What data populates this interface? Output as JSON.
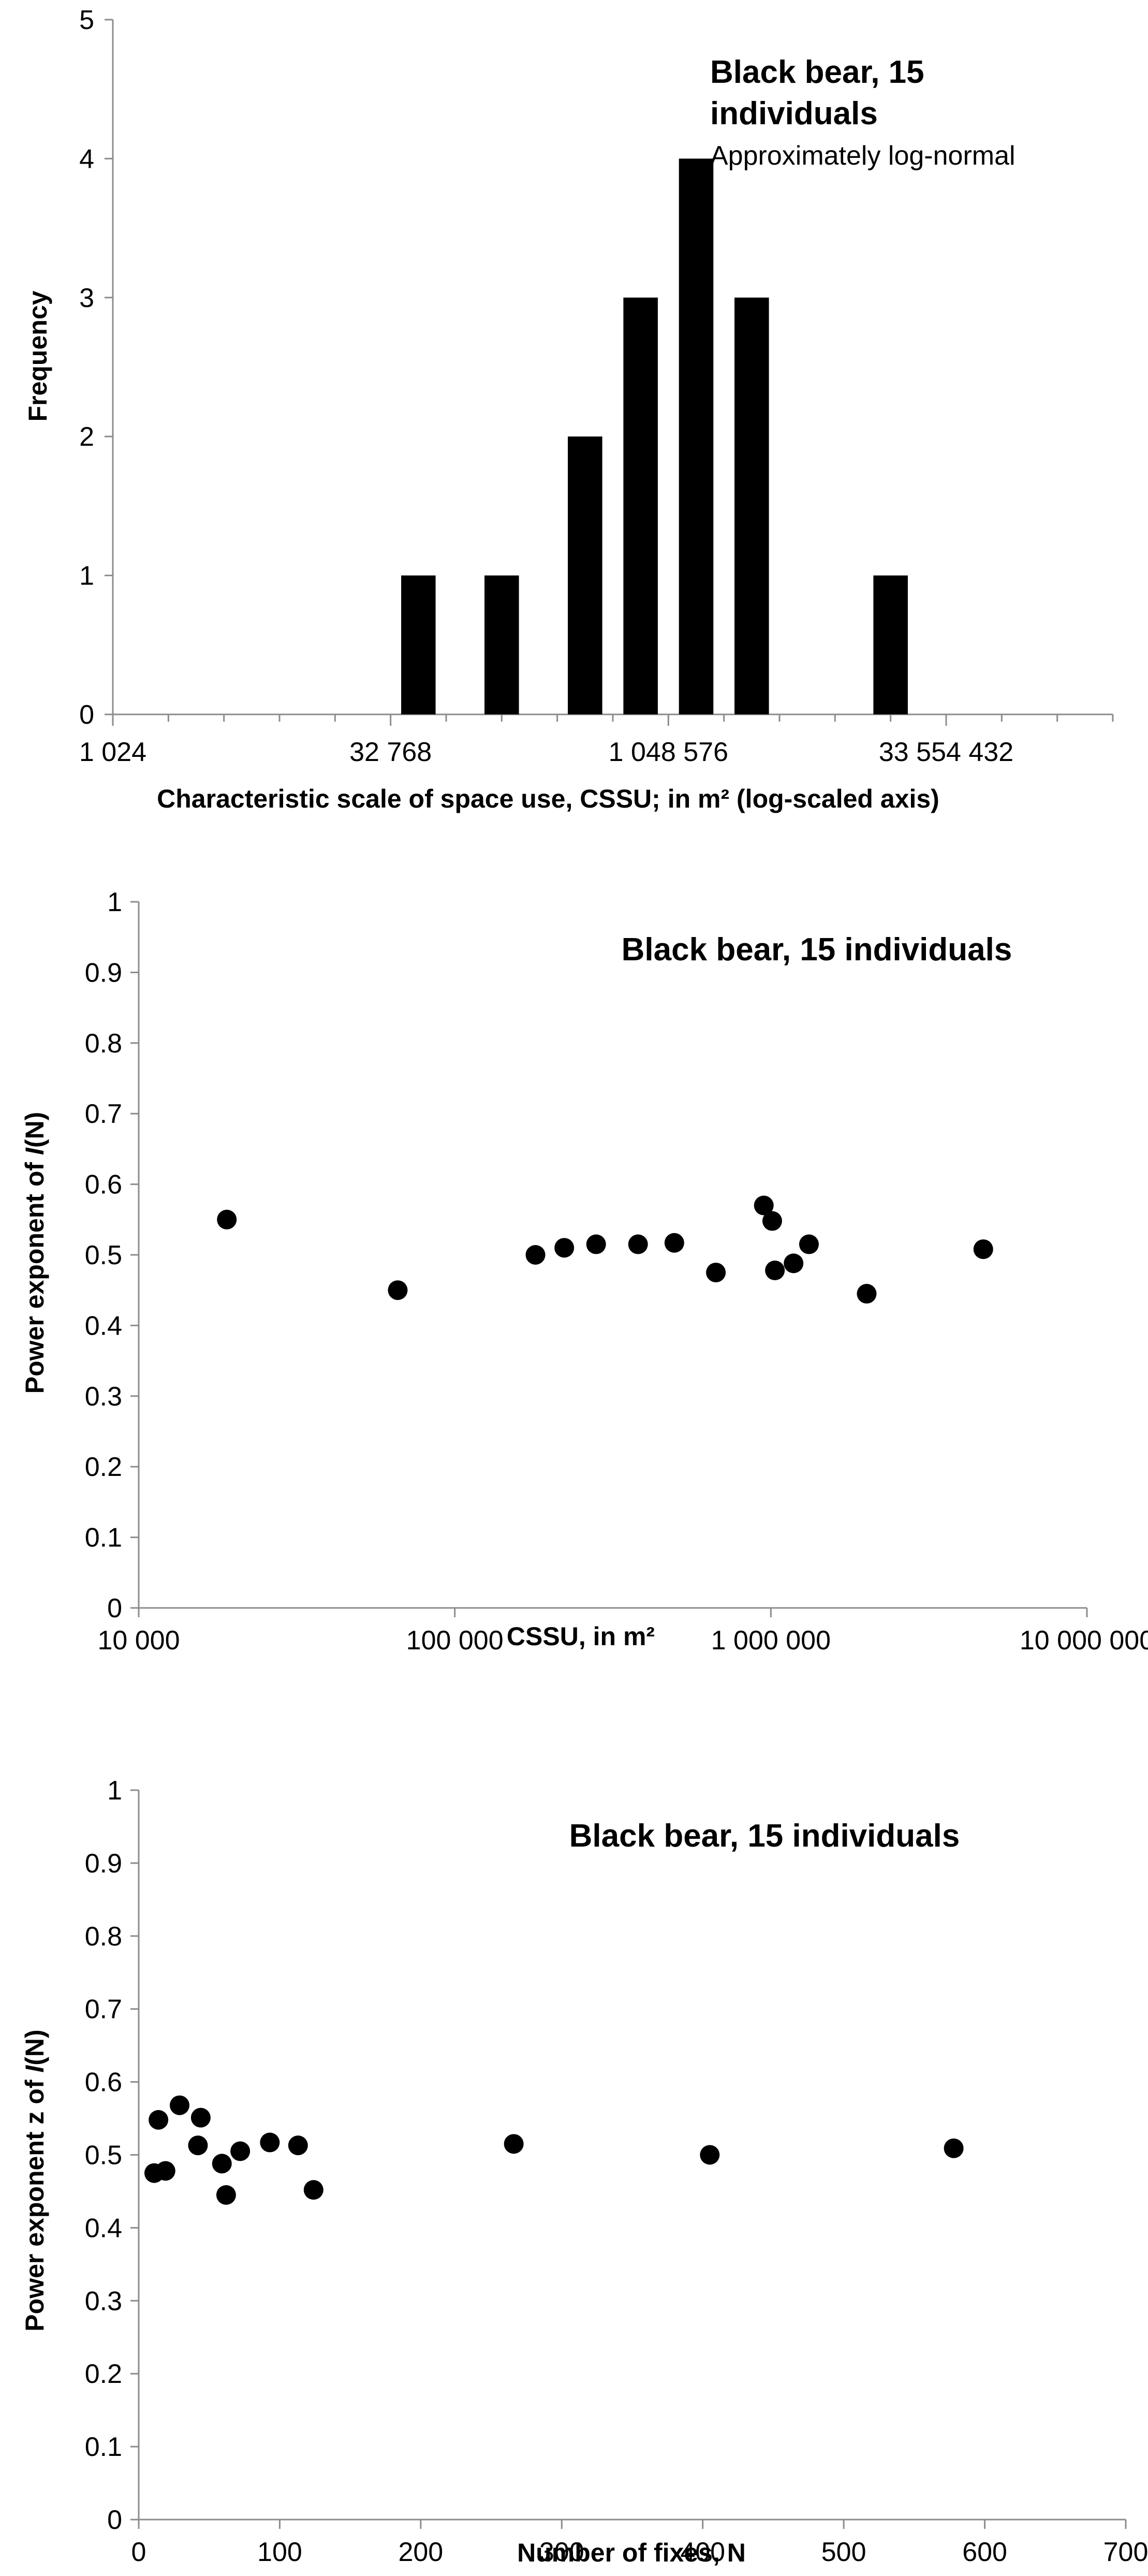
{
  "chart_data": [
    {
      "type": "bar",
      "title_lines": [
        "Black bear, 15",
        "individuals"
      ],
      "subtitle": "Approximately log-normal",
      "xlabel": "Characteristic scale of space use, CSSU; in m² (log-scaled axis)",
      "ylabel": "Frequency",
      "x_tick_labels": [
        "1 024",
        "32 768",
        "1 048 576",
        "33 554 432"
      ],
      "x_tick_values": [
        1024,
        32768,
        1048576,
        33554432
      ],
      "x_log_base": 2,
      "xlim": [
        1024,
        268435456
      ],
      "ylim": [
        0,
        5
      ],
      "y_ticks": [
        0,
        1,
        2,
        3,
        4,
        5
      ],
      "bars": [
        {
          "x": 46341,
          "value": 1
        },
        {
          "x": 131072,
          "value": 1
        },
        {
          "x": 370728,
          "value": 2
        },
        {
          "x": 741455,
          "value": 3
        },
        {
          "x": 1482910,
          "value": 4
        },
        {
          "x": 2965821,
          "value": 3
        },
        {
          "x": 16777216,
          "value": 1
        }
      ],
      "grid": false
    },
    {
      "type": "scatter",
      "title": "Black bear, 15 individuals",
      "xlabel": "CSSU, in m²",
      "ylabel_prefix": "Power exponent of ",
      "ylabel_italic": "I",
      "ylabel_suffix": "(N)",
      "x_scale": "log",
      "xlim": [
        10000,
        10000000
      ],
      "x_tick_labels": [
        "10 000",
        "100 000",
        "1 000 000",
        "10 000 000"
      ],
      "x_tick_values": [
        10000,
        100000,
        1000000,
        10000000
      ],
      "ylim": [
        0,
        1
      ],
      "y_tick_labels": [
        "0",
        "0.1",
        "0.2",
        "0.3",
        "0.4",
        "0.5",
        "0.6",
        "0.7",
        "0.8",
        "0.9",
        "1"
      ],
      "points": [
        {
          "x": 19000,
          "y": 0.55
        },
        {
          "x": 66000,
          "y": 0.45
        },
        {
          "x": 180000,
          "y": 0.5
        },
        {
          "x": 222000,
          "y": 0.51
        },
        {
          "x": 280000,
          "y": 0.515
        },
        {
          "x": 380000,
          "y": 0.515
        },
        {
          "x": 495000,
          "y": 0.517
        },
        {
          "x": 670000,
          "y": 0.475
        },
        {
          "x": 950000,
          "y": 0.57
        },
        {
          "x": 1010000,
          "y": 0.548
        },
        {
          "x": 1030000,
          "y": 0.478
        },
        {
          "x": 1180000,
          "y": 0.488
        },
        {
          "x": 1320000,
          "y": 0.515
        },
        {
          "x": 2010000,
          "y": 0.445
        },
        {
          "x": 4700000,
          "y": 0.508
        }
      ],
      "grid": false
    },
    {
      "type": "scatter",
      "title": "Black bear, 15 individuals",
      "xlabel": "Number of fixes, N",
      "ylabel_prefix": "Power exponent z of ",
      "ylabel_italic": "I",
      "ylabel_suffix": "(N)",
      "xlim": [
        0,
        700
      ],
      "x_tick_labels": [
        "0",
        "100",
        "200",
        "300",
        "400",
        "500",
        "600",
        "700"
      ],
      "ylim": [
        0,
        1
      ],
      "y_tick_labels": [
        "0",
        "0.1",
        "0.2",
        "0.3",
        "0.4",
        "0.5",
        "0.6",
        "0.7",
        "0.8",
        "0.9",
        "1"
      ],
      "points": [
        {
          "x": 11,
          "y": 0.475
        },
        {
          "x": 14,
          "y": 0.548
        },
        {
          "x": 19,
          "y": 0.478
        },
        {
          "x": 29,
          "y": 0.568
        },
        {
          "x": 42,
          "y": 0.513
        },
        {
          "x": 44,
          "y": 0.551
        },
        {
          "x": 59,
          "y": 0.488
        },
        {
          "x": 62,
          "y": 0.445
        },
        {
          "x": 72,
          "y": 0.505
        },
        {
          "x": 93,
          "y": 0.517
        },
        {
          "x": 113,
          "y": 0.513
        },
        {
          "x": 124,
          "y": 0.452
        },
        {
          "x": 266,
          "y": 0.515
        },
        {
          "x": 405,
          "y": 0.5
        },
        {
          "x": 578,
          "y": 0.509
        }
      ],
      "grid": false
    }
  ]
}
